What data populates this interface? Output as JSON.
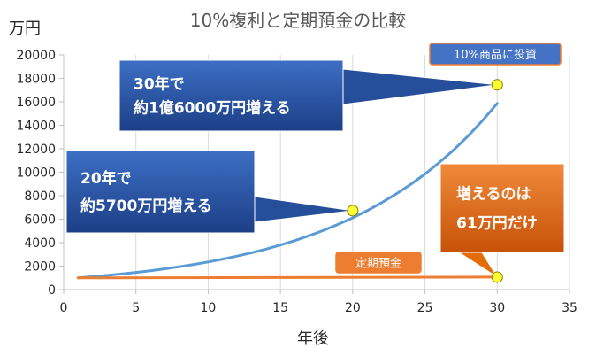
{
  "chart_data": {
    "type": "line",
    "title": "10%複利と定期預金の比較",
    "ylabel": "万円",
    "xlabel": "年後",
    "xlim": [
      0,
      35
    ],
    "ylim": [
      0,
      20000
    ],
    "x_ticks": [
      0,
      5,
      10,
      15,
      20,
      25,
      30,
      35
    ],
    "y_ticks": [
      0,
      2000,
      4000,
      6000,
      8000,
      10000,
      12000,
      14000,
      16000,
      18000,
      20000
    ],
    "grid": "vertical",
    "series": [
      {
        "name": "10%商品に投資",
        "color": "#5b9bd5",
        "growth_rate": 0.1,
        "x": [
          1,
          30
        ],
        "start_value": 1000,
        "end_value": 17449
      },
      {
        "name": "定期預金",
        "color": "#ed7d31",
        "x": [
          1,
          30
        ],
        "start_value": 1000,
        "end_value": 1061
      }
    ],
    "highlight_points": [
      {
        "x": 20,
        "y": 6727,
        "color": "#ffff33"
      },
      {
        "x": 30,
        "y": 17449,
        "color": "#ffff33"
      },
      {
        "x": 30,
        "y": 1061,
        "color": "#ffff33"
      }
    ],
    "annotations": [
      {
        "id": "callout30",
        "lines": [
          "30年で",
          "約1億6000万円増える"
        ],
        "color": "#1f4e9a",
        "target": {
          "x": 30,
          "y": 17449
        }
      },
      {
        "id": "callout20",
        "lines": [
          "20年で",
          "約5700万円増える"
        ],
        "color": "#1f4e9a",
        "target": {
          "x": 20,
          "y": 6727
        }
      },
      {
        "id": "callout_deposit",
        "lines": [
          "増えるのは",
          "61万円だけ"
        ],
        "color": "#e46c0a",
        "target": {
          "x": 30,
          "y": 1061
        }
      }
    ],
    "series_labels": [
      {
        "text": "10%商品に投資",
        "fill": "#4472c4",
        "stroke": "#ed7d31"
      },
      {
        "text": "定期預金",
        "fill": "#ed7d31",
        "stroke": "#ed7d31"
      }
    ]
  }
}
